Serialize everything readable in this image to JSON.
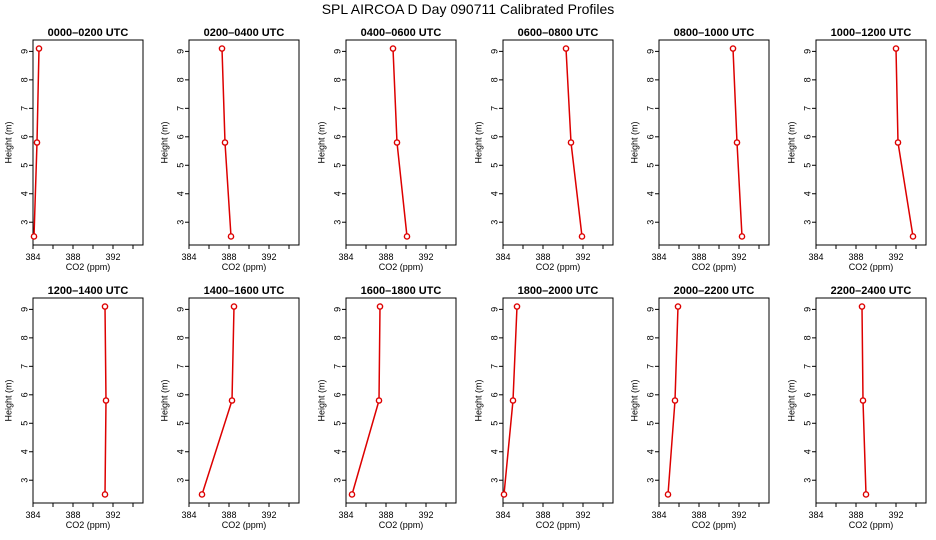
{
  "title": "SPL AIRCOA D  Day 090711  Calibrated Profiles",
  "style": {
    "line_color": "#dd0000",
    "marker_color": "#dd0000"
  },
  "chart_data": [
    {
      "type": "line",
      "title": "0000–0200 UTC",
      "xlabel": "CO2 (ppm)",
      "ylabel": "Height (m)",
      "xlim": [
        384,
        395
      ],
      "ylim": [
        2.2,
        9.4
      ],
      "xticks": [
        "384",
        "388",
        "392"
      ],
      "yticks": [
        "3",
        "4",
        "5",
        "6",
        "7",
        "8",
        "9"
      ],
      "x": [
        384.1,
        384.4,
        384.6
      ],
      "y": [
        2.5,
        5.8,
        9.1
      ]
    },
    {
      "type": "line",
      "title": "0200–0400 UTC",
      "xlabel": "CO2 (ppm)",
      "ylabel": "Height (m)",
      "xlim": [
        384,
        395
      ],
      "ylim": [
        2.2,
        9.4
      ],
      "xticks": [
        "384",
        "388",
        "392"
      ],
      "yticks": [
        "3",
        "4",
        "5",
        "6",
        "7",
        "8",
        "9"
      ],
      "x": [
        388.2,
        387.6,
        387.3
      ],
      "y": [
        2.5,
        5.8,
        9.1
      ]
    },
    {
      "type": "line",
      "title": "0400–0600 UTC",
      "xlabel": "CO2 (ppm)",
      "ylabel": "Height (m)",
      "xlim": [
        384,
        395
      ],
      "ylim": [
        2.2,
        9.4
      ],
      "xticks": [
        "384",
        "388",
        "392"
      ],
      "yticks": [
        "3",
        "4",
        "5",
        "6",
        "7",
        "8",
        "9"
      ],
      "x": [
        390.1,
        389.1,
        388.7
      ],
      "y": [
        2.5,
        5.8,
        9.1
      ]
    },
    {
      "type": "line",
      "title": "0600–0800 UTC",
      "xlabel": "CO2 (ppm)",
      "ylabel": "Height (m)",
      "xlim": [
        384,
        395
      ],
      "ylim": [
        2.2,
        9.4
      ],
      "xticks": [
        "384",
        "388",
        "392"
      ],
      "yticks": [
        "3",
        "4",
        "5",
        "6",
        "7",
        "8",
        "9"
      ],
      "x": [
        391.9,
        390.8,
        390.3
      ],
      "y": [
        2.5,
        5.8,
        9.1
      ]
    },
    {
      "type": "line",
      "title": "0800–1000 UTC",
      "xlabel": "CO2 (ppm)",
      "ylabel": "Height (m)",
      "xlim": [
        384,
        395
      ],
      "ylim": [
        2.2,
        9.4
      ],
      "xticks": [
        "384",
        "388",
        "392"
      ],
      "yticks": [
        "3",
        "4",
        "5",
        "6",
        "7",
        "8",
        "9"
      ],
      "x": [
        392.3,
        391.8,
        391.4
      ],
      "y": [
        2.5,
        5.8,
        9.1
      ]
    },
    {
      "type": "line",
      "title": "1000–1200 UTC",
      "xlabel": "CO2 (ppm)",
      "ylabel": "Height (m)",
      "xlim": [
        384,
        395
      ],
      "ylim": [
        2.2,
        9.4
      ],
      "xticks": [
        "384",
        "388",
        "392"
      ],
      "yticks": [
        "3",
        "4",
        "5",
        "6",
        "7",
        "8",
        "9"
      ],
      "x": [
        393.7,
        392.2,
        392.0
      ],
      "y": [
        2.5,
        5.8,
        9.1
      ]
    },
    {
      "type": "line",
      "title": "1200–1400 UTC",
      "xlabel": "CO2 (ppm)",
      "ylabel": "Height (m)",
      "xlim": [
        384,
        395
      ],
      "ylim": [
        2.2,
        9.4
      ],
      "xticks": [
        "384",
        "388",
        "392"
      ],
      "yticks": [
        "3",
        "4",
        "5",
        "6",
        "7",
        "8",
        "9"
      ],
      "x": [
        391.2,
        391.3,
        391.2
      ],
      "y": [
        2.5,
        5.8,
        9.1
      ]
    },
    {
      "type": "line",
      "title": "1400–1600 UTC",
      "xlabel": "CO2 (ppm)",
      "ylabel": "Height (m)",
      "xlim": [
        384,
        395
      ],
      "ylim": [
        2.2,
        9.4
      ],
      "xticks": [
        "384",
        "388",
        "392"
      ],
      "yticks": [
        "3",
        "4",
        "5",
        "6",
        "7",
        "8",
        "9"
      ],
      "x": [
        385.3,
        388.3,
        388.5
      ],
      "y": [
        2.5,
        5.8,
        9.1
      ]
    },
    {
      "type": "line",
      "title": "1600–1800 UTC",
      "xlabel": "CO2 (ppm)",
      "ylabel": "Height (m)",
      "xlim": [
        384,
        395
      ],
      "ylim": [
        2.2,
        9.4
      ],
      "xticks": [
        "384",
        "388",
        "392"
      ],
      "yticks": [
        "3",
        "4",
        "5",
        "6",
        "7",
        "8",
        "9"
      ],
      "x": [
        384.6,
        387.3,
        387.4
      ],
      "y": [
        2.5,
        5.8,
        9.1
      ]
    },
    {
      "type": "line",
      "title": "1800–2000 UTC",
      "xlabel": "CO2 (ppm)",
      "ylabel": "Height (m)",
      "xlim": [
        384,
        395
      ],
      "ylim": [
        2.2,
        9.4
      ],
      "xticks": [
        "384",
        "388",
        "392"
      ],
      "yticks": [
        "3",
        "4",
        "5",
        "6",
        "7",
        "8",
        "9"
      ],
      "x": [
        384.1,
        385.0,
        385.4
      ],
      "y": [
        2.5,
        5.8,
        9.1
      ]
    },
    {
      "type": "line",
      "title": "2000–2200 UTC",
      "xlabel": "CO2 (ppm)",
      "ylabel": "Height (m)",
      "xlim": [
        384,
        395
      ],
      "ylim": [
        2.2,
        9.4
      ],
      "xticks": [
        "384",
        "388",
        "392"
      ],
      "yticks": [
        "3",
        "4",
        "5",
        "6",
        "7",
        "8",
        "9"
      ],
      "x": [
        384.9,
        385.6,
        385.9
      ],
      "y": [
        2.5,
        5.8,
        9.1
      ]
    },
    {
      "type": "line",
      "title": "2200–2400 UTC",
      "xlabel": "CO2 (ppm)",
      "ylabel": "Height (m)",
      "xlim": [
        384,
        395
      ],
      "ylim": [
        2.2,
        9.4
      ],
      "xticks": [
        "384",
        "388",
        "392"
      ],
      "yticks": [
        "3",
        "4",
        "5",
        "6",
        "7",
        "8",
        "9"
      ],
      "x": [
        389.0,
        388.7,
        388.6
      ],
      "y": [
        2.5,
        5.8,
        9.1
      ]
    }
  ]
}
